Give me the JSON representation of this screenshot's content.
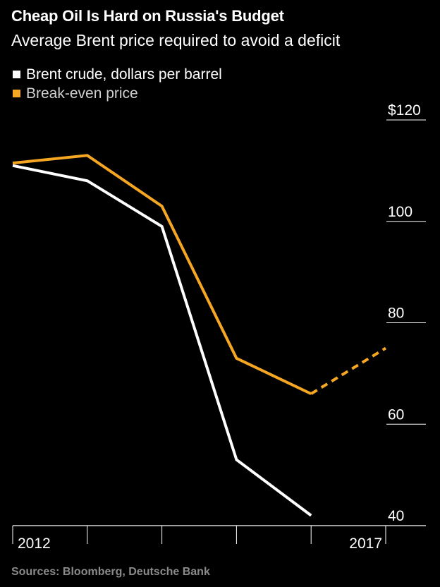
{
  "title": "Cheap Oil Is Hard on Russia's Budget",
  "subtitle": "Average Brent price required to avoid a deficit",
  "source": "Sources: Bloomberg, Deutsche Bank",
  "colors": {
    "background": "#000000",
    "brent": "#ffffff",
    "breakeven": "#f5a623",
    "axis": "#ffffff",
    "source": "#8a8a8a"
  },
  "chart_data": {
    "type": "line",
    "x": [
      2012,
      2013,
      2014,
      2015,
      2016,
      2017
    ],
    "series": [
      {
        "name": "Brent crude, dollars per barrel",
        "color": "#ffffff",
        "values": [
          111,
          108,
          99,
          53,
          42,
          null
        ]
      },
      {
        "name": "Break-even price",
        "color": "#f5a623",
        "values": [
          111.5,
          113,
          103,
          73,
          66,
          75
        ],
        "dashed_from_index": 4
      }
    ],
    "x_tick_labels": [
      {
        "x": 2012,
        "label": "2012"
      },
      {
        "x": 2017,
        "label": "2017"
      }
    ],
    "y_ticks": [
      {
        "value": 120,
        "label": "$120"
      },
      {
        "value": 100,
        "label": "100"
      },
      {
        "value": 80,
        "label": "80"
      },
      {
        "value": 60,
        "label": "60"
      },
      {
        "value": 40,
        "label": "40"
      }
    ],
    "xlim": [
      2012,
      2017
    ],
    "ylim": [
      40,
      120
    ],
    "y_axis_position": "right",
    "legend": "top-left",
    "grid": false
  }
}
